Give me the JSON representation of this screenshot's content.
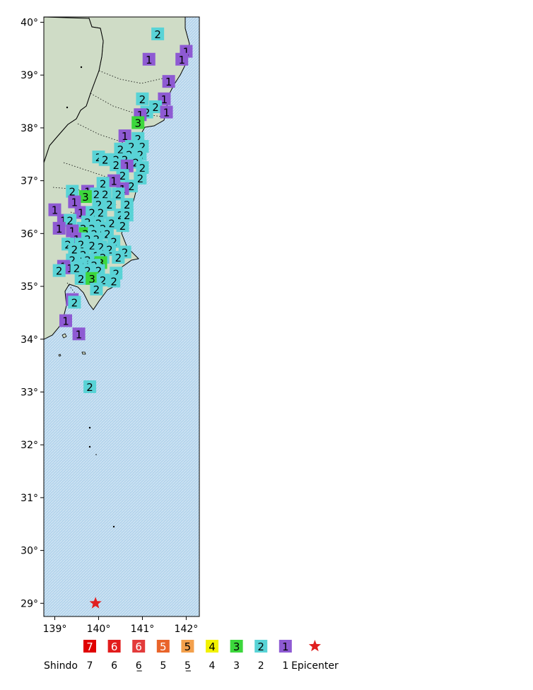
{
  "map": {
    "lat_range": [
      28.75,
      40.1
    ],
    "lon_range": [
      138.75,
      142.3
    ],
    "lat_ticks": [
      {
        "value": 40,
        "label": "40°"
      },
      {
        "value": 39,
        "label": "39°"
      },
      {
        "value": 38,
        "label": "38°"
      },
      {
        "value": 37,
        "label": "37°"
      },
      {
        "value": 36,
        "label": "36°"
      },
      {
        "value": 35,
        "label": "35°"
      },
      {
        "value": 34,
        "label": "34°"
      },
      {
        "value": 33,
        "label": "33°"
      },
      {
        "value": 32,
        "label": "32°"
      },
      {
        "value": 31,
        "label": "31°"
      },
      {
        "value": 30,
        "label": "30°"
      },
      {
        "value": 29,
        "label": "29°"
      }
    ],
    "lon_ticks": [
      {
        "value": 139,
        "label": "139°"
      },
      {
        "value": 140,
        "label": "140°"
      },
      {
        "value": 141,
        "label": "141°"
      },
      {
        "value": 142,
        "label": "142°"
      }
    ],
    "colors": {
      "sea": "#b4d4ec",
      "land": "#cfdcc6",
      "coast": "#000000",
      "shindo_1": "#8e5ad3",
      "shindo_2": "#59d3d6",
      "shindo_3": "#3cd73c",
      "shindo_4": "#f2f200",
      "shindo_5_lower": "#f3a04c",
      "shindo_5_upper": "#e9642a",
      "shindo_6_lower": "#e33b3b",
      "shindo_6_upper": "#e21c1c",
      "shindo_7": "#e00000",
      "epicenter": "#e02020"
    },
    "epicenter": {
      "lat": 29.0,
      "lon": 139.93
    },
    "stations": [
      {
        "lat": 39.78,
        "lon": 141.35,
        "v": "2"
      },
      {
        "lat": 39.45,
        "lon": 142.0,
        "v": "1"
      },
      {
        "lat": 39.3,
        "lon": 141.9,
        "v": "1"
      },
      {
        "lat": 39.3,
        "lon": 141.15,
        "v": "1"
      },
      {
        "lat": 38.88,
        "lon": 141.6,
        "v": "1"
      },
      {
        "lat": 38.55,
        "lon": 141.5,
        "v": "1"
      },
      {
        "lat": 38.55,
        "lon": 141.0,
        "v": "2"
      },
      {
        "lat": 38.4,
        "lon": 141.3,
        "v": "2"
      },
      {
        "lat": 38.3,
        "lon": 141.55,
        "v": "1"
      },
      {
        "lat": 38.3,
        "lon": 141.1,
        "v": "2"
      },
      {
        "lat": 38.25,
        "lon": 140.95,
        "v": "1"
      },
      {
        "lat": 38.1,
        "lon": 140.9,
        "v": "3"
      },
      {
        "lat": 37.85,
        "lon": 140.6,
        "v": "1"
      },
      {
        "lat": 37.8,
        "lon": 140.9,
        "v": "2"
      },
      {
        "lat": 37.65,
        "lon": 140.75,
        "v": "2"
      },
      {
        "lat": 37.65,
        "lon": 141.0,
        "v": "2"
      },
      {
        "lat": 37.6,
        "lon": 140.5,
        "v": "2"
      },
      {
        "lat": 37.5,
        "lon": 140.7,
        "v": "2"
      },
      {
        "lat": 37.5,
        "lon": 140.95,
        "v": "2"
      },
      {
        "lat": 37.45,
        "lon": 140.0,
        "v": "2"
      },
      {
        "lat": 37.4,
        "lon": 140.15,
        "v": "2"
      },
      {
        "lat": 37.4,
        "lon": 140.4,
        "v": "2"
      },
      {
        "lat": 37.4,
        "lon": 140.6,
        "v": "2"
      },
      {
        "lat": 37.35,
        "lon": 140.85,
        "v": "2"
      },
      {
        "lat": 37.3,
        "lon": 140.4,
        "v": "2"
      },
      {
        "lat": 37.28,
        "lon": 140.65,
        "v": "1"
      },
      {
        "lat": 37.25,
        "lon": 141.0,
        "v": "2"
      },
      {
        "lat": 37.1,
        "lon": 140.55,
        "v": "2"
      },
      {
        "lat": 37.05,
        "lon": 140.95,
        "v": "2"
      },
      {
        "lat": 37.0,
        "lon": 140.35,
        "v": "1"
      },
      {
        "lat": 36.95,
        "lon": 140.1,
        "v": "2"
      },
      {
        "lat": 36.9,
        "lon": 140.75,
        "v": "2"
      },
      {
        "lat": 36.85,
        "lon": 140.55,
        "v": "1"
      },
      {
        "lat": 36.8,
        "lon": 139.4,
        "v": "2"
      },
      {
        "lat": 36.8,
        "lon": 139.75,
        "v": "1"
      },
      {
        "lat": 36.75,
        "lon": 139.95,
        "v": "2"
      },
      {
        "lat": 36.75,
        "lon": 140.15,
        "v": "2"
      },
      {
        "lat": 36.75,
        "lon": 140.45,
        "v": "2"
      },
      {
        "lat": 36.7,
        "lon": 139.7,
        "v": "3"
      },
      {
        "lat": 36.6,
        "lon": 139.45,
        "v": "1"
      },
      {
        "lat": 36.55,
        "lon": 140.0,
        "v": "2"
      },
      {
        "lat": 36.55,
        "lon": 140.25,
        "v": "2"
      },
      {
        "lat": 36.55,
        "lon": 140.65,
        "v": "2"
      },
      {
        "lat": 36.45,
        "lon": 139.0,
        "v": "1"
      },
      {
        "lat": 36.4,
        "lon": 139.6,
        "v": "1"
      },
      {
        "lat": 36.4,
        "lon": 139.85,
        "v": "2"
      },
      {
        "lat": 36.4,
        "lon": 140.05,
        "v": "2"
      },
      {
        "lat": 36.35,
        "lon": 140.5,
        "v": "2"
      },
      {
        "lat": 36.35,
        "lon": 140.65,
        "v": "2"
      },
      {
        "lat": 36.25,
        "lon": 139.2,
        "v": "1"
      },
      {
        "lat": 36.25,
        "lon": 139.35,
        "v": "2"
      },
      {
        "lat": 36.22,
        "lon": 139.75,
        "v": "2"
      },
      {
        "lat": 36.2,
        "lon": 140.0,
        "v": "2"
      },
      {
        "lat": 36.2,
        "lon": 140.3,
        "v": "2"
      },
      {
        "lat": 36.15,
        "lon": 140.55,
        "v": "2"
      },
      {
        "lat": 36.1,
        "lon": 139.1,
        "v": "1"
      },
      {
        "lat": 36.1,
        "lon": 139.65,
        "v": "2"
      },
      {
        "lat": 36.1,
        "lon": 139.85,
        "v": "2"
      },
      {
        "lat": 36.1,
        "lon": 140.1,
        "v": "2"
      },
      {
        "lat": 36.05,
        "lon": 139.4,
        "v": "1"
      },
      {
        "lat": 36.0,
        "lon": 139.7,
        "v": "3"
      },
      {
        "lat": 36.0,
        "lon": 139.9,
        "v": "2"
      },
      {
        "lat": 36.0,
        "lon": 140.2,
        "v": "2"
      },
      {
        "lat": 35.9,
        "lon": 139.5,
        "v": "1"
      },
      {
        "lat": 35.9,
        "lon": 139.75,
        "v": "2"
      },
      {
        "lat": 35.9,
        "lon": 139.95,
        "v": "2"
      },
      {
        "lat": 35.85,
        "lon": 140.35,
        "v": "2"
      },
      {
        "lat": 35.8,
        "lon": 139.3,
        "v": "2"
      },
      {
        "lat": 35.8,
        "lon": 139.6,
        "v": "2"
      },
      {
        "lat": 35.78,
        "lon": 139.85,
        "v": "2"
      },
      {
        "lat": 35.75,
        "lon": 140.05,
        "v": "2"
      },
      {
        "lat": 35.7,
        "lon": 139.45,
        "v": "2"
      },
      {
        "lat": 35.7,
        "lon": 140.25,
        "v": "2"
      },
      {
        "lat": 35.65,
        "lon": 140.6,
        "v": "2"
      },
      {
        "lat": 35.6,
        "lon": 139.65,
        "v": "2"
      },
      {
        "lat": 35.58,
        "lon": 139.95,
        "v": "2"
      },
      {
        "lat": 35.55,
        "lon": 140.1,
        "v": "2"
      },
      {
        "lat": 35.55,
        "lon": 140.45,
        "v": "2"
      },
      {
        "lat": 35.5,
        "lon": 139.4,
        "v": "2"
      },
      {
        "lat": 35.5,
        "lon": 139.75,
        "v": "2"
      },
      {
        "lat": 35.45,
        "lon": 140.05,
        "v": "3"
      },
      {
        "lat": 35.4,
        "lon": 139.6,
        "v": "2"
      },
      {
        "lat": 35.4,
        "lon": 139.9,
        "v": "2"
      },
      {
        "lat": 35.38,
        "lon": 139.2,
        "v": "1"
      },
      {
        "lat": 35.35,
        "lon": 139.35,
        "v": "1"
      },
      {
        "lat": 35.35,
        "lon": 139.5,
        "v": "2"
      },
      {
        "lat": 35.3,
        "lon": 139.1,
        "v": "2"
      },
      {
        "lat": 35.3,
        "lon": 139.75,
        "v": "2"
      },
      {
        "lat": 35.3,
        "lon": 140.0,
        "v": "2"
      },
      {
        "lat": 35.25,
        "lon": 140.4,
        "v": "2"
      },
      {
        "lat": 35.15,
        "lon": 139.6,
        "v": "2"
      },
      {
        "lat": 35.15,
        "lon": 139.85,
        "v": "3"
      },
      {
        "lat": 35.12,
        "lon": 140.1,
        "v": "2"
      },
      {
        "lat": 35.1,
        "lon": 140.35,
        "v": "2"
      },
      {
        "lat": 34.95,
        "lon": 139.95,
        "v": "2"
      },
      {
        "lat": 34.75,
        "lon": 139.4,
        "v": "1"
      },
      {
        "lat": 34.7,
        "lon": 139.45,
        "v": "2"
      },
      {
        "lat": 34.35,
        "lon": 139.25,
        "v": "1"
      },
      {
        "lat": 34.1,
        "lon": 139.55,
        "v": "1"
      },
      {
        "lat": 33.1,
        "lon": 139.8,
        "v": "2"
      }
    ]
  },
  "legend": {
    "items": [
      {
        "key": "7",
        "label": "7",
        "color_key": "shindo_7",
        "text_color": "#ffffff"
      },
      {
        "key": "6",
        "label": "6̄",
        "color_key": "shindo_6_upper",
        "text_color": "#ffffff"
      },
      {
        "key": "6",
        "label": "6̲",
        "color_key": "shindo_6_lower",
        "text_color": "#ffffff"
      },
      {
        "key": "5",
        "label": "5̄",
        "color_key": "shindo_5_upper",
        "text_color": "#ffffff"
      },
      {
        "key": "5",
        "label": "5̲",
        "color_key": "shindo_5_lower",
        "text_color": "#000000"
      },
      {
        "key": "4",
        "label": "4",
        "color_key": "shindo_4",
        "text_color": "#000000"
      },
      {
        "key": "3",
        "label": "3",
        "color_key": "shindo_3",
        "text_color": "#000000"
      },
      {
        "key": "2",
        "label": "2",
        "color_key": "shindo_2",
        "text_color": "#000000"
      },
      {
        "key": "1",
        "label": "1",
        "color_key": "shindo_1",
        "text_color": "#000000"
      }
    ],
    "shindo_label": "Shindo",
    "epicenter_label": "Epicenter"
  }
}
